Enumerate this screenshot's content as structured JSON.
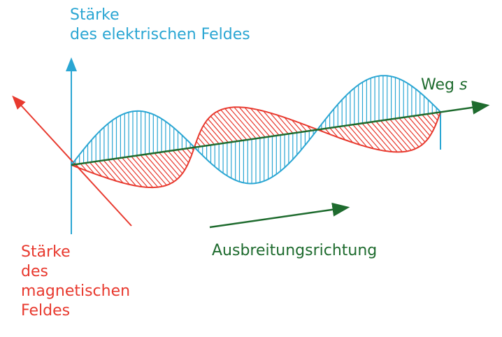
{
  "labels": {
    "electric_field_line1": "Stärke",
    "electric_field_line2": "des elektrischen Feldes",
    "magnetic_field_line1": "Stärke",
    "magnetic_field_line2": "des",
    "magnetic_field_line3": "magnetischen",
    "magnetic_field_line4": "Feldes",
    "path_word": "Weg",
    "path_symbol": "s",
    "propagation": "Ausbreitungsrichtung"
  },
  "colors": {
    "electric": "#2aa6d3",
    "magnetic": "#e8392e",
    "propagation": "#1e6b2e"
  },
  "wave": {
    "electric_wavelengths": 1.5,
    "magnetic_wavelengths": 1.5,
    "phase_relation": "in phase, perpendicular planes",
    "hatching": true
  }
}
